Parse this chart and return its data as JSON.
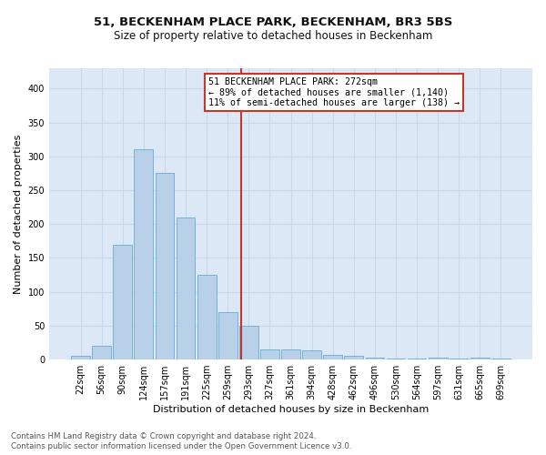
{
  "title": "51, BECKENHAM PLACE PARK, BECKENHAM, BR3 5BS",
  "subtitle": "Size of property relative to detached houses in Beckenham",
  "xlabel": "Distribution of detached houses by size in Beckenham",
  "ylabel": "Number of detached properties",
  "categories": [
    "22sqm",
    "56sqm",
    "90sqm",
    "124sqm",
    "157sqm",
    "191sqm",
    "225sqm",
    "259sqm",
    "293sqm",
    "327sqm",
    "361sqm",
    "394sqm",
    "428sqm",
    "462sqm",
    "496sqm",
    "530sqm",
    "564sqm",
    "597sqm",
    "631sqm",
    "665sqm",
    "699sqm"
  ],
  "values": [
    5,
    20,
    170,
    310,
    275,
    210,
    125,
    70,
    50,
    15,
    15,
    13,
    7,
    5,
    3,
    2,
    1,
    3,
    1,
    3,
    2
  ],
  "bar_color": "#b8d0e8",
  "bar_edge_color": "#6aaad4",
  "highlight_index": -1,
  "vline_x": 7.65,
  "vline_color": "#c0392b",
  "annotation_text": "51 BECKENHAM PLACE PARK: 272sqm\n← 89% of detached houses are smaller (1,140)\n11% of semi-detached houses are larger (138) →",
  "annotation_box_color": "#c0392b",
  "ylim": [
    0,
    430
  ],
  "yticks": [
    0,
    50,
    100,
    150,
    200,
    250,
    300,
    350,
    400
  ],
  "background_color": "#dce8f5",
  "grid_color": "#c5d8ec",
  "footer1": "Contains HM Land Registry data © Crown copyright and database right 2024.",
  "footer2": "Contains public sector information licensed under the Open Government Licence v3.0.",
  "title_fontsize": 9.5,
  "subtitle_fontsize": 8.5,
  "xlabel_fontsize": 8,
  "ylabel_fontsize": 8,
  "tick_fontsize": 7
}
